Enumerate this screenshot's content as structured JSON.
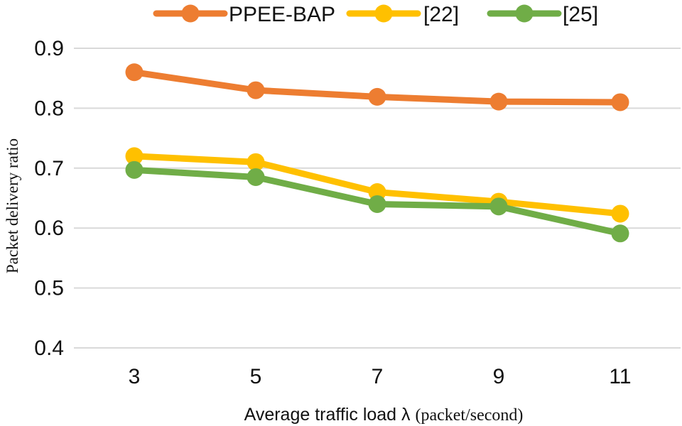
{
  "chart_data": {
    "type": "line",
    "title": "",
    "xlabel_main": "Average traffic load λ ",
    "xlabel_unit": "(packet/second)",
    "ylabel": "Packet delivery ratio",
    "categories": [
      "3",
      "5",
      "7",
      "9",
      "11"
    ],
    "yticks": [
      "0.4",
      "0.5",
      "0.6",
      "0.7",
      "0.8",
      "0.9"
    ],
    "ylim": [
      0.4,
      0.9
    ],
    "grid": true,
    "legend_position": "top",
    "series": [
      {
        "name": "PPEE-BAP",
        "color": "#ed7d31",
        "values": [
          0.86,
          0.83,
          0.819,
          0.811,
          0.81
        ]
      },
      {
        "name": "[22]",
        "color": "#ffc000",
        "values": [
          0.72,
          0.71,
          0.66,
          0.644,
          0.624
        ]
      },
      {
        "name": "[25]",
        "color": "#70ad47",
        "values": [
          0.697,
          0.685,
          0.64,
          0.636,
          0.591
        ]
      }
    ]
  }
}
